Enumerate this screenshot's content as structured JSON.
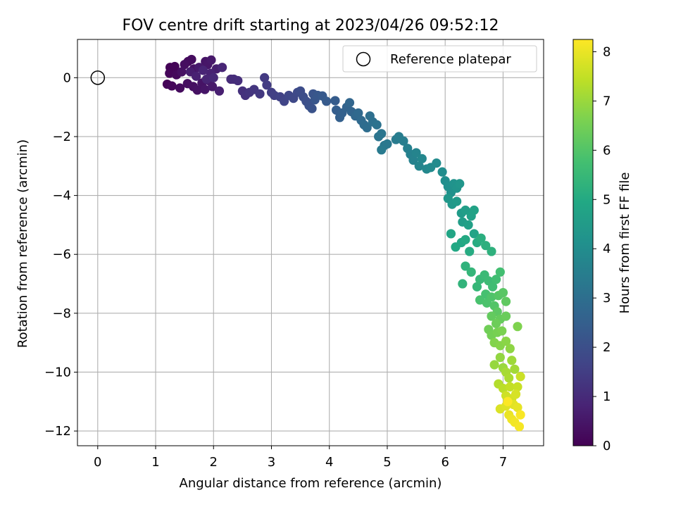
{
  "chart_data": {
    "type": "scatter",
    "title": "FOV centre drift starting at 2023/04/26 09:52:12",
    "xlabel": "Angular distance from reference (arcmin)",
    "ylabel": "Rotation from reference (arcmin)",
    "xlim": [
      -0.35,
      7.7
    ],
    "ylim": [
      -12.5,
      1.3
    ],
    "x_ticks": [
      0,
      1,
      2,
      3,
      4,
      5,
      6,
      7
    ],
    "y_ticks": [
      0,
      -2,
      -4,
      -6,
      -8,
      -10,
      -12
    ],
    "grid": true,
    "legend": {
      "position": "top-right",
      "entries": [
        {
          "label": "Reference platepar",
          "marker": "open-circle"
        }
      ]
    },
    "reference_point": {
      "x": 0,
      "y": 0
    },
    "colorbar": {
      "label": "Hours from first FF file",
      "colormap": "viridis",
      "range": [
        0,
        8.25
      ],
      "ticks": [
        0,
        1,
        2,
        3,
        4,
        5,
        6,
        7,
        8
      ]
    },
    "points": [
      [
        1.25,
        0.35,
        0.05
      ],
      [
        1.33,
        0.38,
        0.08
      ],
      [
        1.24,
        0.15,
        0.12
      ],
      [
        1.36,
        0.1,
        0.18
      ],
      [
        1.56,
        0.55,
        0.2
      ],
      [
        1.62,
        0.62,
        0.25
      ],
      [
        1.5,
        0.45,
        0.3
      ],
      [
        1.45,
        0.2,
        0.35
      ],
      [
        1.66,
        0.3,
        0.4
      ],
      [
        1.86,
        0.55,
        0.45
      ],
      [
        1.9,
        0.45,
        0.5
      ],
      [
        1.96,
        0.6,
        0.55
      ],
      [
        1.75,
        0.35,
        0.6
      ],
      [
        1.6,
        0.2,
        0.65
      ],
      [
        1.2,
        -0.22,
        0.1
      ],
      [
        1.28,
        -0.28,
        0.15
      ],
      [
        1.42,
        -0.35,
        0.22
      ],
      [
        1.55,
        -0.2,
        0.28
      ],
      [
        1.65,
        -0.3,
        0.32
      ],
      [
        1.72,
        -0.42,
        0.38
      ],
      [
        1.8,
        -0.18,
        0.42
      ],
      [
        1.85,
        -0.4,
        0.48
      ],
      [
        1.92,
        -0.1,
        0.52
      ],
      [
        1.98,
        -0.3,
        0.58
      ],
      [
        2.05,
        0.3,
        0.68
      ],
      [
        2.1,
        -0.45,
        0.72
      ],
      [
        1.7,
        0.05,
        0.75
      ],
      [
        1.95,
        0.15,
        0.78
      ],
      [
        1.82,
        0.25,
        0.82
      ],
      [
        1.88,
        -0.05,
        0.85
      ],
      [
        2.15,
        0.35,
        0.88
      ],
      [
        2.0,
        0.0,
        0.92
      ],
      [
        2.3,
        -0.05,
        1.0
      ],
      [
        2.35,
        -0.05,
        1.05
      ],
      [
        2.42,
        -0.1,
        1.1
      ],
      [
        2.5,
        -0.45,
        1.15
      ],
      [
        2.55,
        -0.6,
        1.2
      ],
      [
        2.62,
        -0.5,
        1.25
      ],
      [
        2.7,
        -0.4,
        1.3
      ],
      [
        2.8,
        -0.55,
        1.35
      ],
      [
        2.88,
        0.0,
        1.4
      ],
      [
        2.92,
        -0.25,
        1.45
      ],
      [
        3.0,
        -0.5,
        1.5
      ],
      [
        3.05,
        -0.6,
        1.55
      ],
      [
        3.15,
        -0.65,
        1.62
      ],
      [
        3.22,
        -0.8,
        1.68
      ],
      [
        3.3,
        -0.6,
        1.75
      ],
      [
        3.38,
        -0.7,
        1.8
      ],
      [
        3.45,
        -0.5,
        1.85
      ],
      [
        3.5,
        -0.45,
        1.9
      ],
      [
        3.55,
        -0.65,
        1.95
      ],
      [
        3.6,
        -0.8,
        2.0
      ],
      [
        3.65,
        -0.95,
        2.05
      ],
      [
        3.7,
        -1.05,
        2.1
      ],
      [
        3.72,
        -0.55,
        2.15
      ],
      [
        3.75,
        -0.75,
        2.2
      ],
      [
        3.8,
        -0.6,
        2.25
      ],
      [
        3.88,
        -0.62,
        2.3
      ],
      [
        3.95,
        -0.8,
        2.35
      ],
      [
        4.1,
        -0.78,
        2.4
      ],
      [
        4.12,
        -1.1,
        2.45
      ],
      [
        4.18,
        -1.35,
        2.5
      ],
      [
        4.22,
        -1.2,
        2.55
      ],
      [
        4.3,
        -1.0,
        2.6
      ],
      [
        4.38,
        -1.15,
        2.65
      ],
      [
        4.35,
        -0.85,
        2.7
      ],
      [
        4.45,
        -1.3,
        2.75
      ],
      [
        4.5,
        -1.2,
        2.8
      ],
      [
        4.55,
        -1.45,
        2.85
      ],
      [
        4.6,
        -1.6,
        2.9
      ],
      [
        4.65,
        -1.7,
        2.95
      ],
      [
        4.7,
        -1.3,
        3.0
      ],
      [
        4.75,
        -1.5,
        3.05
      ],
      [
        4.82,
        -1.6,
        3.1
      ],
      [
        4.85,
        -2.0,
        3.15
      ],
      [
        4.9,
        -1.9,
        3.2
      ],
      [
        4.95,
        -2.3,
        3.25
      ],
      [
        5.0,
        -2.25,
        3.3
      ],
      [
        4.9,
        -2.45,
        3.35
      ],
      [
        5.15,
        -2.1,
        3.4
      ],
      [
        5.2,
        -2.0,
        3.45
      ],
      [
        5.28,
        -2.15,
        3.5
      ],
      [
        5.35,
        -2.4,
        3.55
      ],
      [
        5.4,
        -2.6,
        3.6
      ],
      [
        5.45,
        -2.8,
        3.65
      ],
      [
        5.5,
        -2.55,
        3.7
      ],
      [
        5.55,
        -3.0,
        3.75
      ],
      [
        5.6,
        -2.75,
        3.8
      ],
      [
        5.68,
        -3.1,
        3.85
      ],
      [
        5.75,
        -3.05,
        3.9
      ],
      [
        5.85,
        -2.9,
        3.95
      ],
      [
        5.95,
        -3.2,
        4.0
      ],
      [
        6.0,
        -3.5,
        4.05
      ],
      [
        6.05,
        -3.7,
        4.1
      ],
      [
        6.1,
        -3.9,
        4.15
      ],
      [
        6.15,
        -3.6,
        4.2
      ],
      [
        6.2,
        -3.75,
        4.25
      ],
      [
        6.25,
        -3.6,
        4.3
      ],
      [
        6.05,
        -4.1,
        4.35
      ],
      [
        6.12,
        -4.3,
        4.4
      ],
      [
        6.2,
        -4.2,
        4.45
      ],
      [
        6.28,
        -4.6,
        4.5
      ],
      [
        6.3,
        -4.9,
        4.55
      ],
      [
        6.35,
        -4.5,
        4.6
      ],
      [
        6.4,
        -5.0,
        4.65
      ],
      [
        6.45,
        -4.7,
        4.7
      ],
      [
        6.5,
        -4.5,
        4.75
      ],
      [
        6.5,
        -5.3,
        4.8
      ],
      [
        6.1,
        -5.3,
        4.85
      ],
      [
        6.28,
        -5.6,
        4.9
      ],
      [
        6.18,
        -5.75,
        4.95
      ],
      [
        6.35,
        -5.5,
        5.0
      ],
      [
        6.42,
        -5.9,
        5.05
      ],
      [
        6.55,
        -5.6,
        5.1
      ],
      [
        6.62,
        -5.45,
        5.15
      ],
      [
        6.7,
        -5.7,
        5.2
      ],
      [
        6.8,
        -5.9,
        5.25
      ],
      [
        6.35,
        -6.4,
        5.3
      ],
      [
        6.3,
        -7.0,
        5.35
      ],
      [
        6.45,
        -6.6,
        5.4
      ],
      [
        6.55,
        -7.1,
        5.45
      ],
      [
        6.6,
        -6.85,
        5.5
      ],
      [
        6.68,
        -6.7,
        5.55
      ],
      [
        6.75,
        -6.9,
        5.6
      ],
      [
        6.82,
        -7.1,
        5.65
      ],
      [
        6.88,
        -6.85,
        5.7
      ],
      [
        6.95,
        -6.6,
        5.75
      ],
      [
        6.7,
        -7.35,
        5.8
      ],
      [
        6.6,
        -7.55,
        5.85
      ],
      [
        6.72,
        -7.65,
        5.9
      ],
      [
        6.8,
        -7.45,
        5.95
      ],
      [
        6.85,
        -7.75,
        6.0
      ],
      [
        6.92,
        -7.4,
        6.05
      ],
      [
        7.0,
        -7.3,
        6.1
      ],
      [
        6.9,
        -7.95,
        6.15
      ],
      [
        7.05,
        -7.6,
        6.2
      ],
      [
        6.8,
        -8.1,
        6.25
      ],
      [
        6.95,
        -8.2,
        6.3
      ],
      [
        7.05,
        -8.1,
        6.35
      ],
      [
        6.88,
        -8.35,
        6.4
      ],
      [
        6.75,
        -8.55,
        6.45
      ],
      [
        6.8,
        -8.75,
        6.5
      ],
      [
        6.9,
        -8.65,
        6.55
      ],
      [
        6.98,
        -8.6,
        6.6
      ],
      [
        7.25,
        -8.45,
        6.65
      ],
      [
        6.85,
        -9.0,
        6.7
      ],
      [
        6.95,
        -9.1,
        6.75
      ],
      [
        7.05,
        -8.95,
        6.8
      ],
      [
        7.12,
        -9.2,
        6.85
      ],
      [
        6.95,
        -9.5,
        6.9
      ],
      [
        6.85,
        -9.75,
        6.95
      ],
      [
        7.0,
        -9.85,
        7.0
      ],
      [
        7.15,
        -9.6,
        7.05
      ],
      [
        7.2,
        -9.9,
        7.1
      ],
      [
        7.05,
        -10.0,
        7.15
      ],
      [
        7.1,
        -10.2,
        7.2
      ],
      [
        6.92,
        -10.4,
        7.3
      ],
      [
        7.0,
        -10.55,
        7.4
      ],
      [
        7.12,
        -10.5,
        7.5
      ],
      [
        7.25,
        -10.5,
        7.55
      ],
      [
        7.3,
        -10.15,
        7.6
      ],
      [
        7.05,
        -10.8,
        7.65
      ],
      [
        7.15,
        -10.9,
        7.7
      ],
      [
        7.22,
        -10.75,
        7.75
      ],
      [
        6.95,
        -11.25,
        7.8
      ],
      [
        7.05,
        -11.15,
        7.85
      ],
      [
        7.18,
        -11.1,
        7.9
      ],
      [
        7.25,
        -11.2,
        7.95
      ],
      [
        7.1,
        -11.45,
        8.0
      ],
      [
        7.15,
        -11.6,
        8.05
      ],
      [
        7.2,
        -11.7,
        8.1
      ],
      [
        7.28,
        -11.85,
        8.15
      ],
      [
        7.3,
        -11.45,
        8.2
      ],
      [
        7.08,
        -11.0,
        8.22
      ]
    ]
  }
}
